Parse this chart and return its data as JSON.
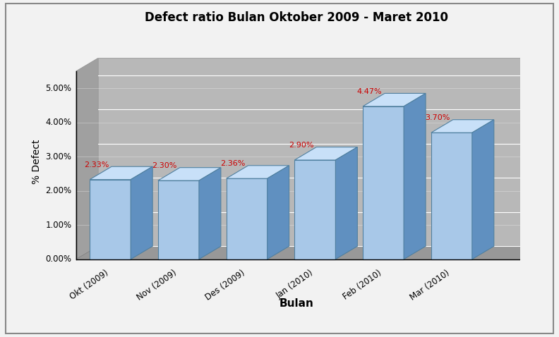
{
  "title": "Defect ratio Bulan Oktober 2009 - Maret 2010",
  "xlabel": "Bulan",
  "ylabel": "% Defect",
  "categories": [
    "Okt (2009)",
    "Nov (2009)",
    "Des (2009)",
    "Jan (2010)",
    "Feb (2010)",
    "Mar (2010)"
  ],
  "values": [
    2.33,
    2.3,
    2.36,
    2.9,
    4.47,
    3.7
  ],
  "labels": [
    "2.33%",
    "2.30%",
    "2.36%",
    "2.90%",
    "4.47%",
    "3.70%"
  ],
  "yticks": [
    0.0,
    1.0,
    2.0,
    3.0,
    4.0,
    5.0
  ],
  "ytick_labels": [
    "0.00%",
    "1.00%",
    "2.00%",
    "3.00%",
    "4.00%",
    "5.00%"
  ],
  "ymax": 5.5,
  "label_color": "#cc0000",
  "bar_front_color": "#a8c8e8",
  "bar_side_color": "#6090c0",
  "bar_top_color": "#c8e0f8",
  "floor_color": "#a0a0a0",
  "bg_color": "#b0b0b0",
  "outer_bg": "#f2f2f2",
  "border_color": "#808080",
  "title_fontsize": 12,
  "axis_label_fontsize": 10,
  "tick_fontsize": 8.5,
  "label_fontsize": 8,
  "outer_border_color": "#888888"
}
